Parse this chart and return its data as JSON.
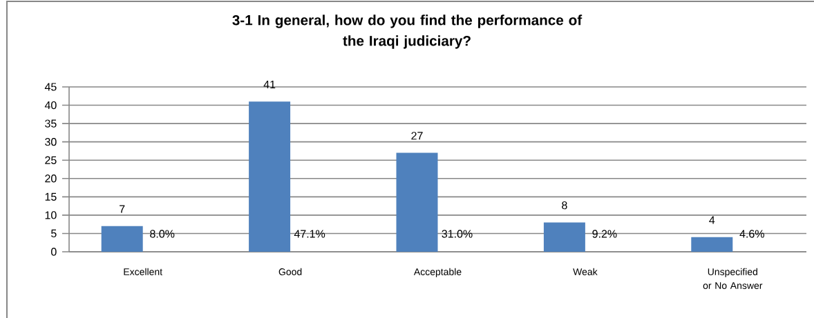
{
  "chart_data": {
    "type": "bar",
    "title": "3-1 In general, how do you find the performance of the Iraqi judiciary?",
    "categories": [
      "Excellent",
      "Good",
      "Acceptable",
      "Weak",
      "Unspecified or No Answer"
    ],
    "values": [
      7,
      41,
      27,
      8,
      4
    ],
    "color": "#4f81bd",
    "ylim": [
      0,
      45
    ],
    "yticks": [
      0,
      5,
      10,
      15,
      20,
      25,
      30,
      35,
      40,
      45
    ],
    "grid": "y",
    "data_labels": true,
    "annotations": [
      "8.0%",
      "47.1%",
      "31.0%",
      "9.2%",
      "4.6%"
    ]
  }
}
